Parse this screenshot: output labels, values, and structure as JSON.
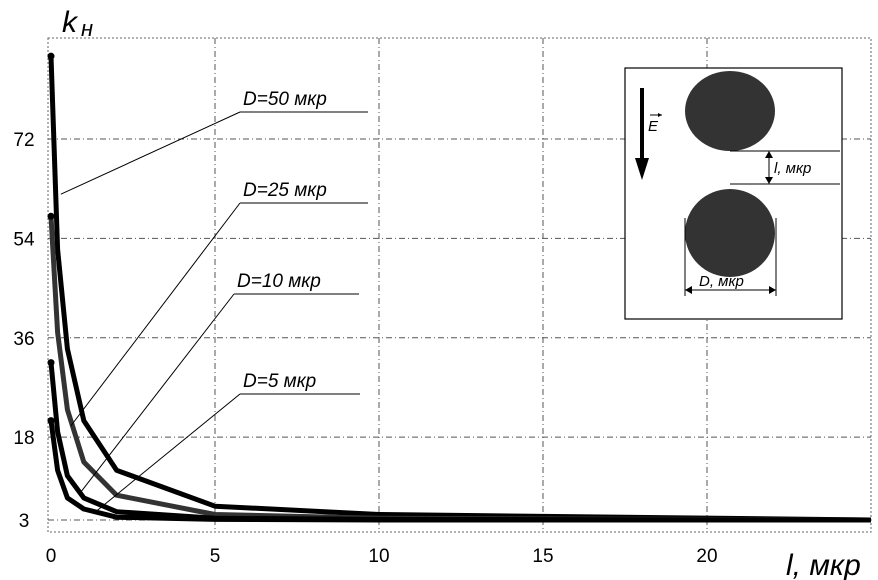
{
  "chart_data": {
    "type": "line",
    "title": "",
    "xlabel": "l, мкр",
    "ylabel_main": "k",
    "ylabel_sub": "н",
    "xlim": [
      0,
      25
    ],
    "ylim": [
      0,
      87
    ],
    "x_ticks": [
      0,
      5,
      10,
      15,
      20
    ],
    "x_tick_labels": [
      "0",
      "5",
      "10",
      "15",
      "20"
    ],
    "y_ticks": [
      3,
      18,
      36,
      54,
      72
    ],
    "y_tick_labels": [
      "3",
      "18",
      "36",
      "54",
      "72"
    ],
    "grid": true,
    "legend": "callout labels",
    "series": [
      {
        "name": "D=50 мкр",
        "x": [
          0,
          0.2,
          0.5,
          1,
          2,
          5,
          10,
          25
        ],
        "y": [
          87,
          52,
          34,
          21,
          12,
          5.5,
          4,
          3
        ]
      },
      {
        "name": "D=25 мкр",
        "x": [
          0,
          0.2,
          0.5,
          1,
          2,
          5,
          10,
          25
        ],
        "y": [
          58,
          37,
          23,
          13.5,
          7.5,
          4,
          3.3,
          3
        ]
      },
      {
        "name": "D=10 мкр",
        "x": [
          0,
          0.2,
          0.5,
          1,
          2,
          5,
          10,
          25
        ],
        "y": [
          31.5,
          19,
          11,
          7,
          4.5,
          3.3,
          3.1,
          3
        ]
      },
      {
        "name": "D=5 мкр",
        "x": [
          0,
          0.2,
          0.5,
          1,
          2,
          5,
          10,
          25
        ],
        "y": [
          21,
          12,
          7,
          5,
          3.5,
          3.1,
          3,
          3
        ]
      }
    ],
    "inset": {
      "field_label": "E",
      "gap_label": "l, мкр",
      "diameter_label": "D, мкр"
    }
  }
}
